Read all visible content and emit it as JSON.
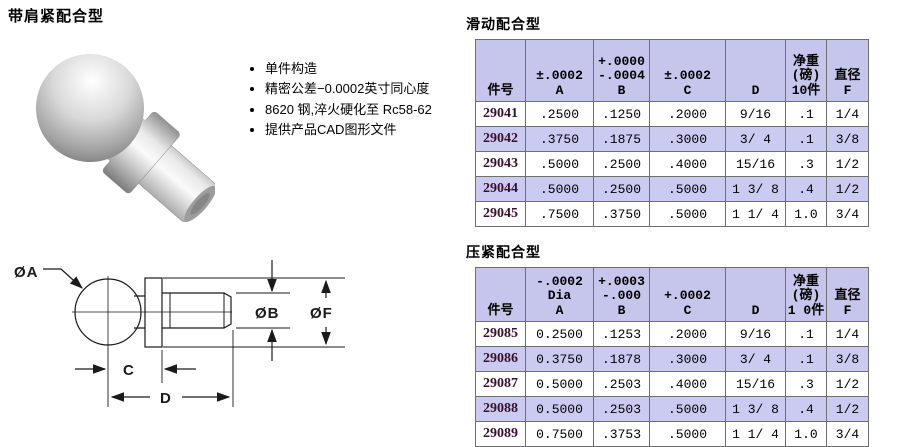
{
  "page": {
    "title": "带肩紧配合型",
    "bullets": [
      "单件构造",
      "精密公差−0.0002英寸同心度",
      "8620 钢,淬火硬化至 Rc58-62",
      "提供产品CAD图形文件"
    ]
  },
  "diagram": {
    "labels": {
      "a": "ØA",
      "b": "ØB",
      "f": "ØF",
      "c": "C",
      "d": "D"
    }
  },
  "tables": [
    {
      "title": "滑动配合型",
      "headers": [
        {
          "lines": [
            "件号"
          ]
        },
        {
          "lines": [
            "±.0002",
            "A"
          ]
        },
        {
          "lines": [
            "+.0000",
            "-.0004",
            "B"
          ]
        },
        {
          "lines": [
            "±.0002",
            "C"
          ]
        },
        {
          "lines": [
            "D"
          ]
        },
        {
          "lines": [
            "净重",
            "(磅)",
            "10件"
          ]
        },
        {
          "lines": [
            "直径",
            "F"
          ]
        }
      ],
      "rows": [
        [
          "29041",
          ".2500",
          ".1250",
          ".2000",
          "9/16",
          ".1",
          "1/4"
        ],
        [
          "29042",
          ".3750",
          ".1875",
          ".3000",
          "3/ 4",
          ".1",
          "3/8"
        ],
        [
          "29043",
          ".5000",
          ".2500",
          ".4000",
          "15/16",
          ".3",
          "1/2"
        ],
        [
          "29044",
          ".5000",
          ".2500",
          ".5000",
          "1 3/ 8",
          ".4",
          "1/2"
        ],
        [
          "29045",
          ".7500",
          ".3750",
          ".5000",
          "1 1/ 4",
          "1.0",
          "3/4"
        ]
      ]
    },
    {
      "title": "压紧配合型",
      "headers": [
        {
          "lines": [
            "件号"
          ]
        },
        {
          "lines": [
            "-.0002",
            "Dia",
            "A"
          ]
        },
        {
          "lines": [
            "+.0003",
            "-.000",
            "B"
          ]
        },
        {
          "lines": [
            "+.0002",
            "C"
          ]
        },
        {
          "lines": [
            "D"
          ]
        },
        {
          "lines": [
            "净重",
            "(磅)",
            "1 0件"
          ]
        },
        {
          "lines": [
            "直径",
            "F"
          ]
        }
      ],
      "rows": [
        [
          "29085",
          "0.2500",
          ".1253",
          ".2000",
          "9/16",
          ".1",
          "1/4"
        ],
        [
          "29086",
          "0.3750",
          ".1878",
          ".3000",
          "3/ 4",
          ".1",
          "3/8"
        ],
        [
          "29087",
          "0.5000",
          ".2503",
          ".4000",
          "15/16",
          ".3",
          "1/2"
        ],
        [
          "29088",
          "0.5000",
          ".2503",
          ".5000",
          "1 3/ 8",
          ".4",
          "1/2"
        ],
        [
          "29089",
          "0.7500",
          ".3753",
          ".5000",
          "1 1/ 4",
          "1.0",
          "3/4"
        ]
      ]
    }
  ],
  "colors": {
    "header_bg": "#c6c6ec",
    "alt_row_bg": "#cbcbf2",
    "part_number": "#38102e",
    "cell_border": "#6e6e6e",
    "outer_border": "#3e3e3e"
  }
}
